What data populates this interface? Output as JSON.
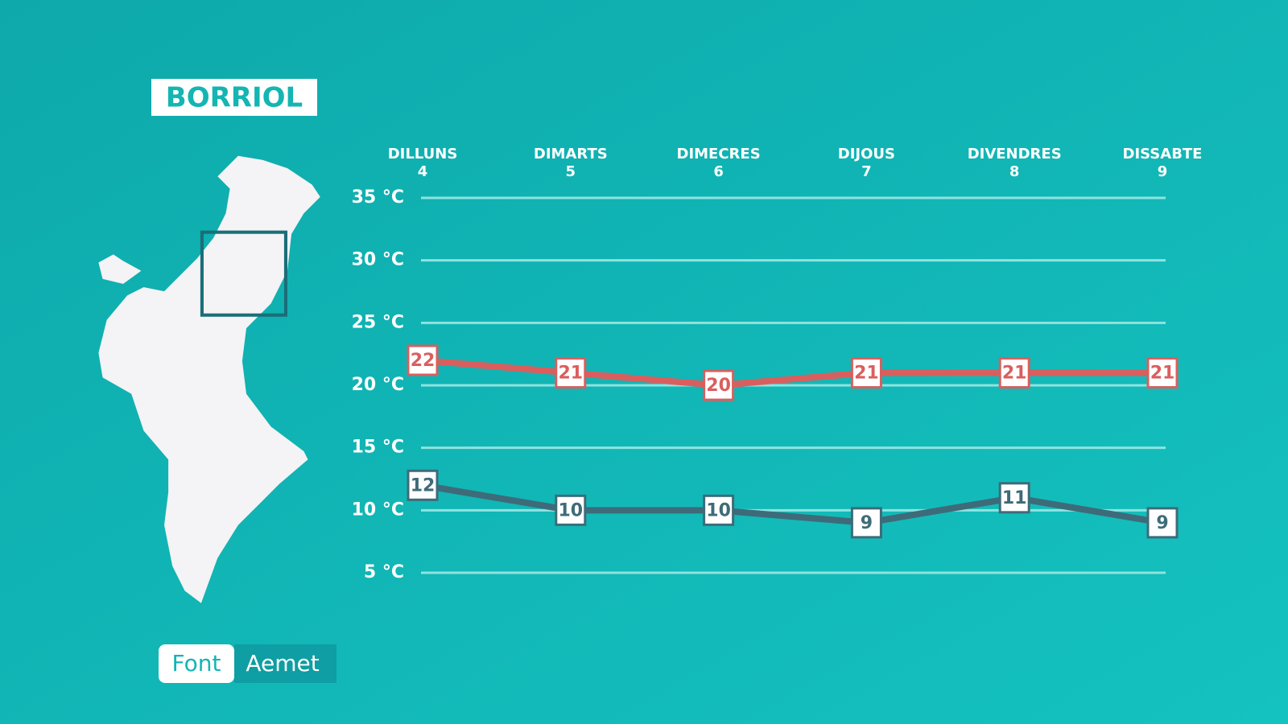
{
  "title": "BORRIOL",
  "source": {
    "label": "Font",
    "value": "Aemet"
  },
  "chart_data": {
    "type": "line",
    "categories": [
      [
        "DILLUNS",
        "4"
      ],
      [
        "DIMARTS",
        "5"
      ],
      [
        "DIMECRES",
        "6"
      ],
      [
        "DIJOUS",
        "7"
      ],
      [
        "DIVENDRES",
        "8"
      ],
      [
        "DISSABTE",
        "9"
      ]
    ],
    "series": [
      {
        "color": "#d95f5e",
        "values": [
          22,
          21,
          20,
          21,
          21,
          21
        ]
      },
      {
        "color": "#3e6b79",
        "values": [
          12,
          10,
          10,
          9,
          11,
          9
        ]
      }
    ],
    "ylim": [
      5,
      35
    ],
    "yticks": [
      {
        "value": 5,
        "label": "5 °C"
      },
      {
        "value": 10,
        "label": "10 °C"
      },
      {
        "value": 15,
        "label": "15 °C"
      },
      {
        "value": 20,
        "label": "20 °C"
      },
      {
        "value": 25,
        "label": "25 °C"
      },
      {
        "value": 30,
        "label": "30 °C"
      },
      {
        "value": 35,
        "label": "35 °C"
      }
    ],
    "grid": true
  }
}
